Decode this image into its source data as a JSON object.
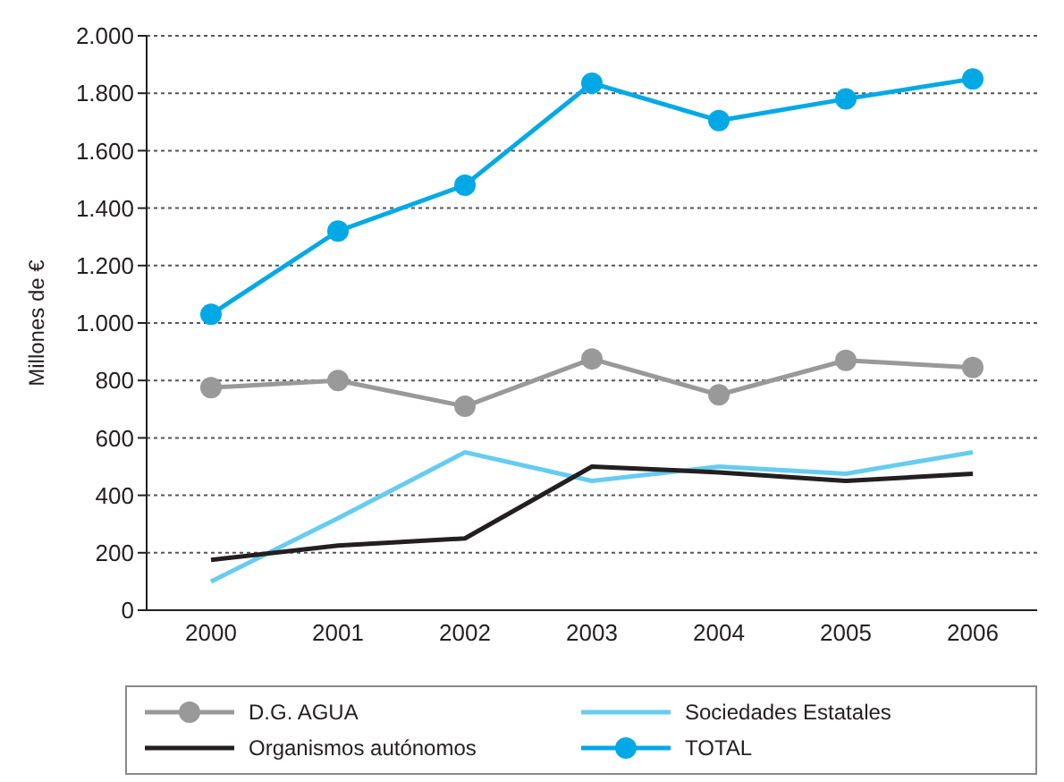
{
  "chart_data": {
    "type": "line",
    "ylabel": "Millones de €",
    "categories": [
      "2000",
      "2001",
      "2002",
      "2003",
      "2004",
      "2005",
      "2006"
    ],
    "series": [
      {
        "name": "D.G. AGUA",
        "color": "#999999",
        "marker": "circle",
        "values": [
          775,
          800,
          710,
          875,
          750,
          870,
          845
        ]
      },
      {
        "name": "Sociedades Estatales",
        "color": "#66ccf0",
        "marker": "none",
        "values": [
          100,
          320,
          550,
          450,
          500,
          475,
          550
        ]
      },
      {
        "name": "Organismos autónomos",
        "color": "#231f20",
        "marker": "none",
        "values": [
          175,
          225,
          250,
          500,
          480,
          450,
          475
        ]
      },
      {
        "name": "TOTAL",
        "color": "#00a9e6",
        "marker": "circle",
        "values": [
          1030,
          1320,
          1480,
          1835,
          1705,
          1780,
          1850
        ]
      }
    ],
    "ylim": [
      0,
      2000
    ],
    "yticks": [
      {
        "value": 0,
        "label": "0"
      },
      {
        "value": 200,
        "label": "200"
      },
      {
        "value": 400,
        "label": "400"
      },
      {
        "value": 600,
        "label": "600"
      },
      {
        "value": 800,
        "label": "800"
      },
      {
        "value": 1000,
        "label": "1.000"
      },
      {
        "value": 1200,
        "label": "1.200"
      },
      {
        "value": 1400,
        "label": "1.400"
      },
      {
        "value": 1600,
        "label": "1.600"
      },
      {
        "value": 1800,
        "label": "1.800"
      },
      {
        "value": 2000,
        "label": "2.000"
      }
    ],
    "grid": "y",
    "legend": "bottom"
  }
}
